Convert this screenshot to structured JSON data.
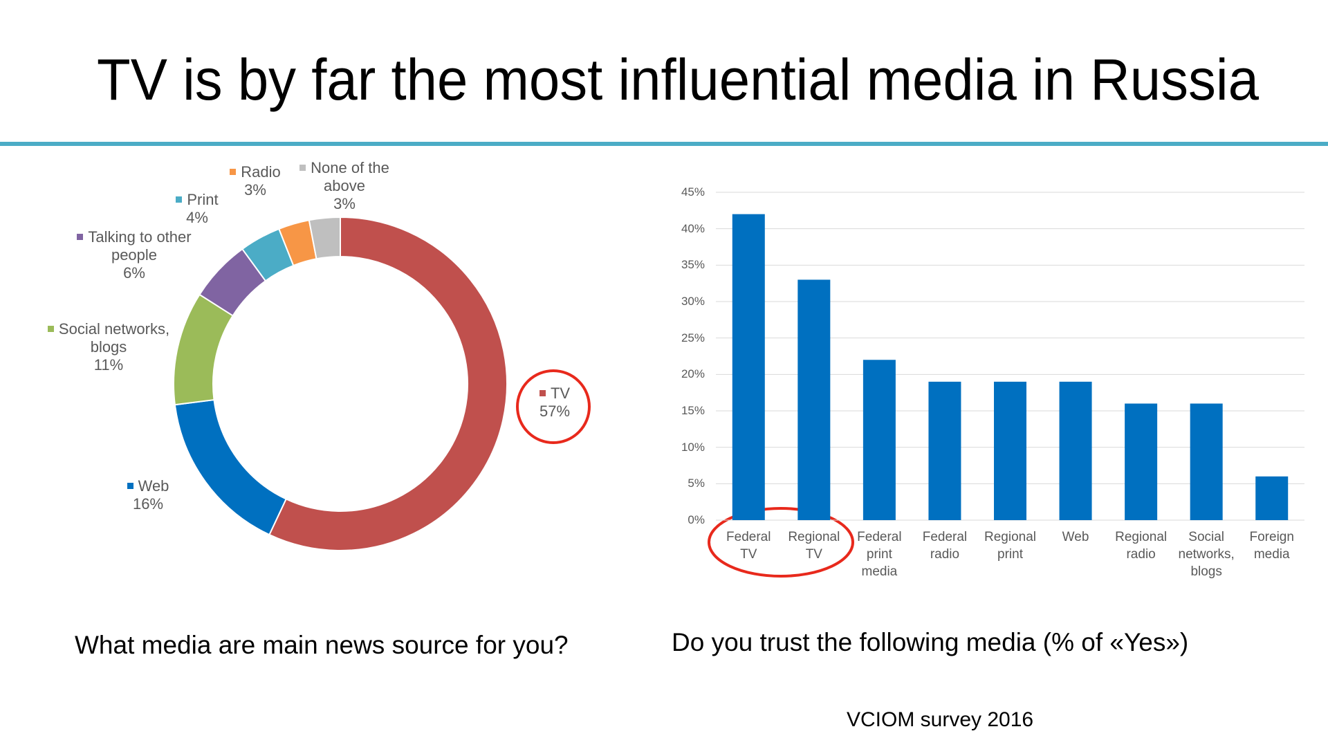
{
  "title": "TV is by far the most influential media in Russia",
  "source": "VCIOM survey 2016",
  "chart_data": [
    {
      "type": "donut",
      "title": "What media are main news source for you?",
      "categories": [
        "TV",
        "Web",
        "Social networks, blogs",
        "Talking to other people",
        "Print",
        "Radio",
        "None of the above"
      ],
      "values": [
        57,
        16,
        11,
        6,
        4,
        3,
        3
      ],
      "value_labels": [
        "57%",
        "16%",
        "11%",
        "6%",
        "4%",
        "3%",
        "3%"
      ],
      "colors": [
        "#c0504d",
        "#0070c0",
        "#9bbb59",
        "#8064a2",
        "#4bacc6",
        "#f79646",
        "#bfbfbf"
      ]
    },
    {
      "type": "bar",
      "title": "Do you trust the following media (% of «Yes»)",
      "categories": [
        "Federal TV",
        "Regional TV",
        "Federal print media",
        "Federal radio",
        "Regional print",
        "Web",
        "Regional radio",
        "Social networks, blogs",
        "Foreign media"
      ],
      "values": [
        42,
        33,
        22,
        19,
        19,
        19,
        16,
        16,
        6
      ],
      "color": "#0070c0",
      "ylim": [
        0,
        45
      ],
      "yticks": [
        {
          "value": 0,
          "label": "0%"
        },
        {
          "value": 5,
          "label": "5%"
        },
        {
          "value": 10,
          "label": "10%"
        },
        {
          "value": 15,
          "label": "15%"
        },
        {
          "value": 20,
          "label": "20%"
        },
        {
          "value": 25,
          "label": "25%"
        },
        {
          "value": 30,
          "label": "30%"
        },
        {
          "value": 35,
          "label": "35%"
        },
        {
          "value": 40,
          "label": "40%"
        },
        {
          "value": 45,
          "label": "45%"
        }
      ],
      "grid": true
    }
  ]
}
